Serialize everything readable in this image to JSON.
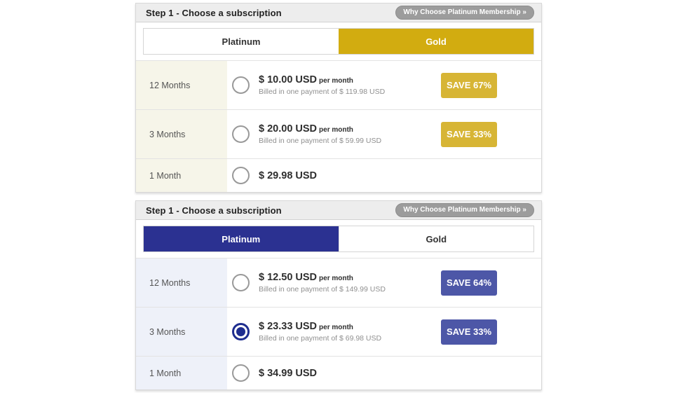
{
  "colors": {
    "gold_tab": "#d2ac10",
    "gold_save_badge": "#d7b535",
    "platinum_tab": "#2b3191",
    "platinum_save_badge": "#4d57a7",
    "selected_radio": "#1e2d8f",
    "header_strip": "#ededed",
    "why_badge_bg": "#9c9c9c",
    "gold_period_column": "#f6f5e9",
    "platinum_period_column": "#eef1f9"
  },
  "panels": [
    {
      "theme": "gold",
      "header": {
        "title": "Step 1 - Choose a subscription",
        "badge": "Why Choose Platinum Membership »"
      },
      "tabs": [
        {
          "label": "Platinum",
          "active": false
        },
        {
          "label": "Gold",
          "active": true
        }
      ],
      "rows": [
        {
          "period": "12 Months",
          "price": "$ 10.00 USD",
          "per": "per month",
          "billed": "Billed in one payment of $ 119.98 USD",
          "save": "SAVE 67%",
          "selected": false
        },
        {
          "period": "3 Months",
          "price": "$ 20.00 USD",
          "per": "per month",
          "billed": "Billed in one payment of $ 59.99 USD",
          "save": "SAVE 33%",
          "selected": false
        },
        {
          "period": "1 Month",
          "price": "$ 29.98 USD",
          "per": "",
          "billed": "",
          "save": "",
          "selected": false
        }
      ]
    },
    {
      "theme": "platinum",
      "header": {
        "title": "Step 1 - Choose a subscription",
        "badge": "Why Choose Platinum Membership »"
      },
      "tabs": [
        {
          "label": "Platinum",
          "active": true
        },
        {
          "label": "Gold",
          "active": false
        }
      ],
      "rows": [
        {
          "period": "12 Months",
          "price": "$ 12.50 USD",
          "per": "per month",
          "billed": "Billed in one payment of $ 149.99 USD",
          "save": "SAVE 64%",
          "selected": false
        },
        {
          "period": "3 Months",
          "price": "$ 23.33 USD",
          "per": "per month",
          "billed": "Billed in one payment of $ 69.98 USD",
          "save": "SAVE 33%",
          "selected": true
        },
        {
          "period": "1 Month",
          "price": "$ 34.99 USD",
          "per": "",
          "billed": "",
          "save": "",
          "selected": false
        }
      ]
    }
  ]
}
